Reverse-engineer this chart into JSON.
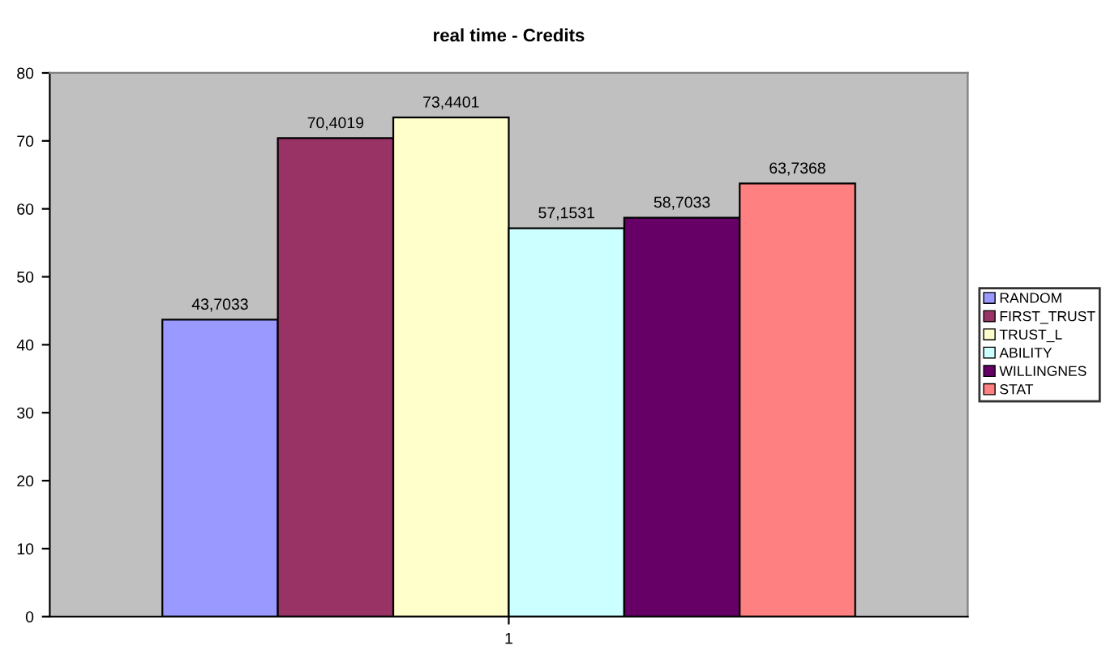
{
  "chart_data": {
    "type": "bar",
    "title": "real time - Credits",
    "categories": [
      "1"
    ],
    "series": [
      {
        "name": "RANDOM",
        "color": "#9999ff",
        "values": [
          43.7033
        ],
        "value_labels": [
          "43,7033"
        ]
      },
      {
        "name": "FIRST_TRUST",
        "color": "#993366",
        "values": [
          70.4019
        ],
        "value_labels": [
          "70,4019"
        ]
      },
      {
        "name": "TRUST_L",
        "color": "#ffffcc",
        "values": [
          73.4401
        ],
        "value_labels": [
          "73,4401"
        ]
      },
      {
        "name": "ABILITY",
        "color": "#ccffff",
        "values": [
          57.1531
        ],
        "value_labels": [
          "57,1531"
        ]
      },
      {
        "name": "WILLINGNES",
        "color": "#660066",
        "values": [
          58.7033
        ],
        "value_labels": [
          "58,7033"
        ]
      },
      {
        "name": "STAT",
        "color": "#ff8080",
        "values": [
          63.7368
        ],
        "value_labels": [
          "63,7368"
        ]
      }
    ],
    "ylim": [
      0,
      80
    ],
    "yticks": [
      0,
      10,
      20,
      30,
      40,
      50,
      60,
      70,
      80
    ],
    "grid": false,
    "legend": "right"
  }
}
